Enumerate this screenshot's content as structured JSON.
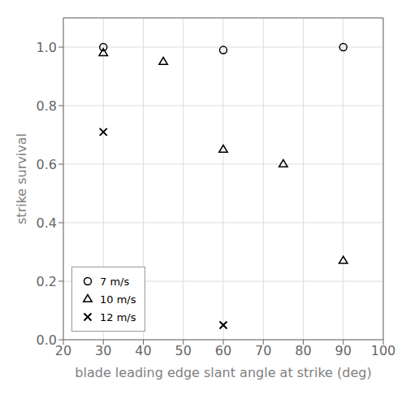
{
  "chart_data": {
    "type": "scatter",
    "xlabel": "blade leading edge slant angle at strike (deg)",
    "ylabel": "strike survival",
    "series": [
      {
        "name": "7 m/s",
        "marker": "o",
        "color": "black",
        "x": [
          30,
          60,
          90
        ],
        "values": [
          1.0,
          0.99,
          1.0
        ]
      },
      {
        "name": "10 m/s",
        "marker": "^",
        "color": "black",
        "x": [
          30,
          45,
          60,
          75,
          90
        ],
        "values": [
          0.98,
          0.95,
          0.65,
          0.6,
          0.27
        ]
      },
      {
        "name": "12 m/s",
        "marker": "x",
        "color": "black",
        "x": [
          30,
          60
        ],
        "values": [
          0.71,
          0.05
        ]
      }
    ],
    "xlim": [
      20,
      100
    ],
    "ylim": [
      0,
      1.1
    ],
    "xticks": [
      20,
      30,
      40,
      50,
      60,
      70,
      80,
      90,
      100
    ],
    "yticks": [
      {
        "value": 0,
        "label": "0.0"
      },
      0.2,
      0.4,
      0.6,
      0.8,
      {
        "value": 1,
        "label": "1.0"
      }
    ],
    "grid": true,
    "legend": "lower left"
  }
}
